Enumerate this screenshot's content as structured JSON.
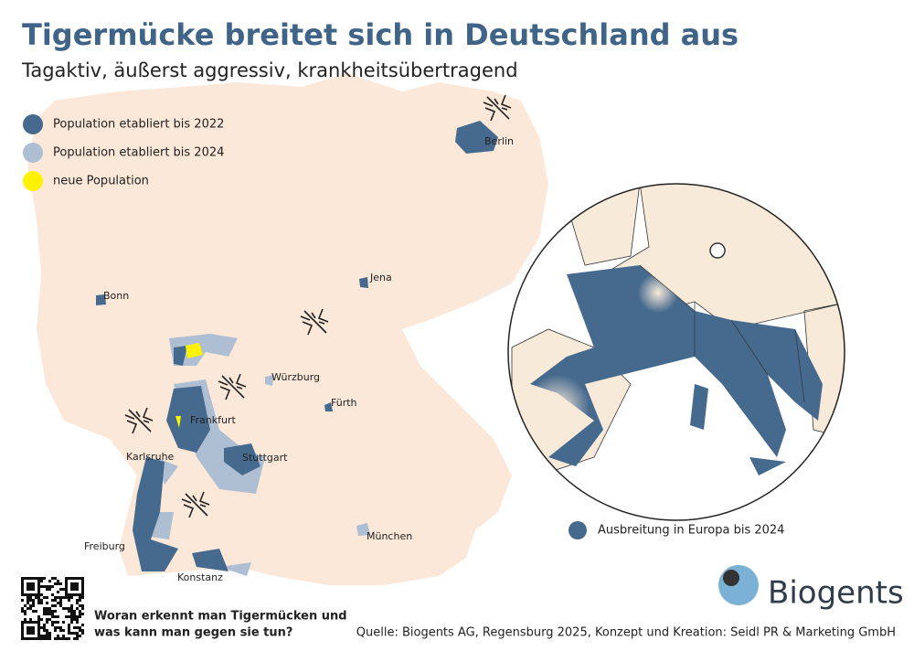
{
  "header": {
    "title": "Tigermücke breitet sich in Deutschland aus",
    "subtitle": "Tagaktiv, äußerst aggressiv, krankheitsübertragend"
  },
  "legend": [
    {
      "label": "Population etabliert bis 2022",
      "color": "#466a8e"
    },
    {
      "label": "Population etabliert bis 2024",
      "color": "#aebfd3"
    },
    {
      "label": "neue Population",
      "color": "#fff200"
    }
  ],
  "cities": [
    "Berlin",
    "Jena",
    "Bonn",
    "Würzburg",
    "Fürth",
    "Frankfurt",
    "Karlsruhe",
    "Stuttgart",
    "München",
    "Freiburg",
    "Konstanz"
  ],
  "inset": {
    "legend": "Ausbreitung in Europa bis 2024",
    "color": "#466a8e"
  },
  "footer": {
    "question": [
      "Woran erkennt man Tigermücken und",
      "was kann man gegen sie tun?"
    ],
    "source": "Quelle: Biogents AG, Regensburg 2025, Konzept und Kreation: Seidl PR & Marketing GmbH"
  },
  "logo": "Biogents"
}
